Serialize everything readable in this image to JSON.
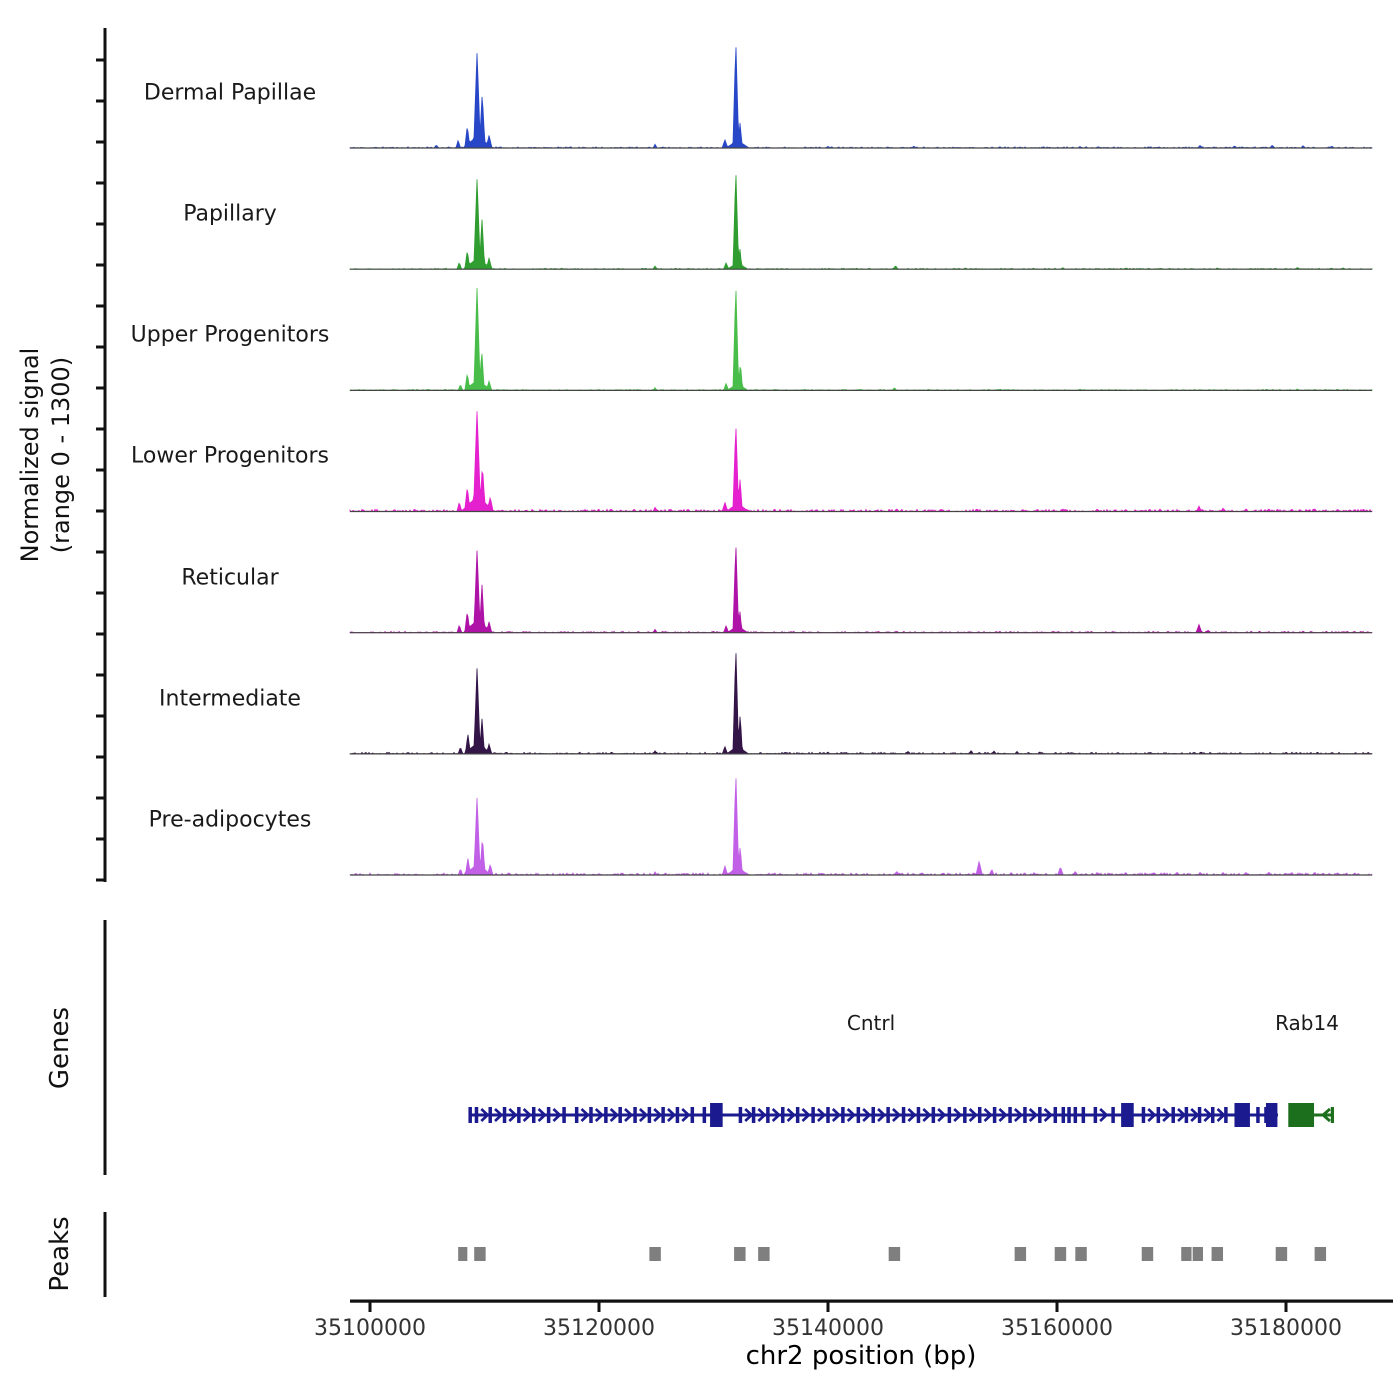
{
  "figure": {
    "y_axis_label_line1": "Normalized signal",
    "y_axis_label_line2": "(range 0 - 1300)",
    "genes_axis_label": "Genes",
    "peaks_axis_label": "Peaks",
    "x_axis_label": "chr2 position (bp)"
  },
  "chart_data": {
    "type": "area",
    "description": "Genome browser view of normalized ATAC/ChIP signal tracks over chr2:35098000-35188000 with gene models and called peaks",
    "x_domain": [
      35098300,
      35187600
    ],
    "x_ticks": [
      35100000,
      35120000,
      35140000,
      35160000,
      35180000
    ],
    "x_tick_labels": [
      "35100000",
      "35120000",
      "35140000",
      "35160000",
      "35180000"
    ],
    "y_range_per_track": [
      0,
      1300
    ],
    "axis_color": "#111111",
    "baseline_color": "#444444",
    "peak_color": "#7f7f7f",
    "tracks": [
      {
        "name": "Dermal Papillae",
        "color": "#2847c8",
        "noise": 14,
        "noise_seed": 11,
        "peaks": [
          [
            35105800,
            35,
            400
          ],
          [
            35107700,
            90,
            400
          ],
          [
            35108500,
            260,
            450
          ],
          [
            35109350,
            1120,
            600
          ],
          [
            35109800,
            640,
            500
          ],
          [
            35110400,
            150,
            500
          ],
          [
            35109400,
            140,
            2600
          ],
          [
            35124900,
            45,
            350
          ],
          [
            35131000,
            95,
            500
          ],
          [
            35131950,
            1240,
            520
          ],
          [
            35132320,
            300,
            380
          ],
          [
            35132100,
            90,
            2000
          ],
          [
            35140000,
            18,
            400
          ],
          [
            35147500,
            22,
            400
          ],
          [
            35155000,
            15,
            400
          ],
          [
            35162000,
            18,
            400
          ],
          [
            35168000,
            15,
            400
          ],
          [
            35172500,
            30,
            450
          ],
          [
            35175500,
            25,
            400
          ],
          [
            35178800,
            32,
            450
          ],
          [
            35181500,
            28,
            400
          ],
          [
            35184000,
            22,
            400
          ]
        ]
      },
      {
        "name": "Papillary",
        "color": "#2f9d2f",
        "noise": 11,
        "noise_seed": 22,
        "peaks": [
          [
            35107800,
            80,
            400
          ],
          [
            35108500,
            220,
            450
          ],
          [
            35109350,
            1060,
            580
          ],
          [
            35109780,
            580,
            480
          ],
          [
            35110400,
            130,
            480
          ],
          [
            35109400,
            130,
            2500
          ],
          [
            35124900,
            38,
            350
          ],
          [
            35131100,
            75,
            450
          ],
          [
            35131950,
            1160,
            500
          ],
          [
            35132300,
            255,
            360
          ],
          [
            35132100,
            75,
            1800
          ],
          [
            35145900,
            42,
            400
          ],
          [
            35152000,
            15,
            350
          ],
          [
            35160500,
            18,
            380
          ],
          [
            35166000,
            14,
            350
          ],
          [
            35174000,
            15,
            350
          ],
          [
            35181000,
            22,
            380
          ],
          [
            35185000,
            15,
            350
          ]
        ]
      },
      {
        "name": "Upper Progenitors",
        "color": "#49bd49",
        "noise": 11,
        "noise_seed": 33,
        "peaks": [
          [
            35107900,
            70,
            380
          ],
          [
            35108500,
            200,
            430
          ],
          [
            35109350,
            1210,
            560
          ],
          [
            35109760,
            470,
            440
          ],
          [
            35110400,
            110,
            450
          ],
          [
            35109400,
            120,
            2400
          ],
          [
            35124900,
            32,
            330
          ],
          [
            35131100,
            80,
            440
          ],
          [
            35131950,
            1230,
            500
          ],
          [
            35132350,
            330,
            380
          ],
          [
            35132100,
            80,
            1800
          ],
          [
            35145800,
            32,
            380
          ],
          [
            35155000,
            12,
            350
          ],
          [
            35162000,
            14,
            350
          ],
          [
            35170000,
            12,
            350
          ],
          [
            35181000,
            18,
            360
          ],
          [
            35184500,
            14,
            350
          ]
        ]
      },
      {
        "name": "Lower Progenitors",
        "color": "#e520ce",
        "noise": 26,
        "noise_seed": 44,
        "peaks": [
          [
            35107800,
            110,
            420
          ],
          [
            35108500,
            290,
            470
          ],
          [
            35109350,
            1180,
            640
          ],
          [
            35109820,
            540,
            500
          ],
          [
            35110500,
            170,
            520
          ],
          [
            35109400,
            180,
            2900
          ],
          [
            35124900,
            52,
            360
          ],
          [
            35131000,
            105,
            500
          ],
          [
            35131950,
            1020,
            520
          ],
          [
            35132320,
            380,
            400
          ],
          [
            35132100,
            95,
            2000
          ],
          [
            35139000,
            25,
            380
          ],
          [
            35146000,
            32,
            400
          ],
          [
            35150000,
            25,
            380
          ],
          [
            35153000,
            28,
            380
          ],
          [
            35157000,
            25,
            380
          ],
          [
            35160500,
            32,
            400
          ],
          [
            35163500,
            28,
            380
          ],
          [
            35166000,
            25,
            380
          ],
          [
            35169000,
            28,
            380
          ],
          [
            35172400,
            62,
            450
          ],
          [
            35174500,
            38,
            400
          ],
          [
            35176500,
            30,
            380
          ],
          [
            35178500,
            32,
            380
          ],
          [
            35180500,
            30,
            380
          ],
          [
            35182500,
            35,
            380
          ],
          [
            35184500,
            28,
            380
          ],
          [
            35186000,
            25,
            380
          ]
        ]
      },
      {
        "name": "Reticular",
        "color": "#ae12a6",
        "noise": 15,
        "noise_seed": 55,
        "peaks": [
          [
            35107800,
            90,
            400
          ],
          [
            35108500,
            250,
            450
          ],
          [
            35109350,
            970,
            560
          ],
          [
            35109780,
            560,
            460
          ],
          [
            35110400,
            130,
            460
          ],
          [
            35109400,
            150,
            2500
          ],
          [
            35124900,
            40,
            340
          ],
          [
            35131100,
            80,
            440
          ],
          [
            35131950,
            1050,
            500
          ],
          [
            35132300,
            265,
            370
          ],
          [
            35132100,
            80,
            1800
          ],
          [
            35146000,
            18,
            360
          ],
          [
            35155000,
            15,
            350
          ],
          [
            35163000,
            15,
            350
          ],
          [
            35172400,
            95,
            500
          ],
          [
            35173200,
            30,
            380
          ],
          [
            35181500,
            18,
            360
          ]
        ]
      },
      {
        "name": "Intermediate",
        "color": "#341548",
        "noise": 18,
        "noise_seed": 66,
        "peaks": [
          [
            35107900,
            80,
            390
          ],
          [
            35108550,
            230,
            440
          ],
          [
            35109350,
            1010,
            560
          ],
          [
            35109780,
            410,
            440
          ],
          [
            35110400,
            115,
            450
          ],
          [
            35109400,
            130,
            2400
          ],
          [
            35124900,
            38,
            340
          ],
          [
            35131000,
            85,
            450
          ],
          [
            35131950,
            1240,
            510
          ],
          [
            35132330,
            470,
            390
          ],
          [
            35132100,
            90,
            1900
          ],
          [
            35140000,
            20,
            360
          ],
          [
            35147000,
            30,
            380
          ],
          [
            35152500,
            38,
            400
          ],
          [
            35154500,
            32,
            380
          ],
          [
            35156500,
            28,
            380
          ],
          [
            35158500,
            22,
            360
          ],
          [
            35163000,
            18,
            360
          ],
          [
            35168000,
            16,
            350
          ],
          [
            35172000,
            20,
            360
          ],
          [
            35176000,
            16,
            350
          ],
          [
            35180000,
            18,
            350
          ],
          [
            35184000,
            16,
            350
          ]
        ]
      },
      {
        "name": "Pre-adipocytes",
        "color": "#c160e6",
        "noise": 24,
        "noise_seed": 77,
        "peaks": [
          [
            35107900,
            75,
            390
          ],
          [
            35108550,
            200,
            430
          ],
          [
            35109350,
            910,
            560
          ],
          [
            35109820,
            450,
            450
          ],
          [
            35110500,
            125,
            460
          ],
          [
            35109400,
            130,
            2400
          ],
          [
            35124900,
            38,
            340
          ],
          [
            35131000,
            105,
            460
          ],
          [
            35131950,
            1190,
            520
          ],
          [
            35132330,
            340,
            390
          ],
          [
            35132100,
            95,
            1900
          ],
          [
            35139500,
            22,
            360
          ],
          [
            35146000,
            45,
            400
          ],
          [
            35150000,
            25,
            370
          ],
          [
            35153200,
            160,
            550
          ],
          [
            35154300,
            65,
            420
          ],
          [
            35156000,
            30,
            380
          ],
          [
            35158000,
            28,
            370
          ],
          [
            35160300,
            95,
            480
          ],
          [
            35161600,
            45,
            390
          ],
          [
            35163500,
            30,
            370
          ],
          [
            35166000,
            32,
            370
          ],
          [
            35168500,
            30,
            370
          ],
          [
            35170500,
            35,
            380
          ],
          [
            35172500,
            32,
            370
          ],
          [
            35174500,
            30,
            370
          ],
          [
            35176500,
            32,
            370
          ],
          [
            35178500,
            35,
            380
          ],
          [
            35180500,
            32,
            370
          ],
          [
            35182500,
            35,
            370
          ],
          [
            35184500,
            30,
            370
          ],
          [
            35186000,
            28,
            360
          ]
        ]
      }
    ],
    "genes": [
      {
        "name": "Cntrl",
        "color": "#1b1b8f",
        "strand": "+",
        "start": 35108700,
        "end": 35179300,
        "exons": [
          35108750,
          35109300,
          35110500,
          35111750,
          35113000,
          35114300,
          35115600,
          35116950,
          35118050,
          35119300,
          35120600,
          35121850,
          35123150,
          35124400,
          35125600,
          35126850,
          35128150,
          35129200,
          35132350,
          35133500,
          35134750,
          35136050,
          35137350,
          35138700,
          35140000,
          35141300,
          35142650,
          35143950,
          35145250,
          35146600,
          35147900,
          35149200,
          35150600,
          35151950,
          35153250,
          35154550,
          35155900,
          35157200,
          35158500,
          35159850,
          35160550,
          35161050,
          35161600,
          35162300,
          35163350,
          35164900,
          35167550,
          35168850,
          35170150,
          35171300,
          35172450,
          35173600,
          35174750,
          35177550,
          35178250,
          35178950
        ],
        "cds_boxes": [
          [
            35129700,
            35130800
          ],
          [
            35165600,
            35166700
          ],
          [
            35175500,
            35176850
          ],
          [
            35178250,
            35179250
          ]
        ]
      },
      {
        "name": "Rab14",
        "color": "#1c6f1c",
        "strand": "-",
        "start": 35180200,
        "end": 35184100,
        "box": [
          35180200,
          35182450
        ],
        "exons": [
          35184050
        ]
      }
    ],
    "peak_calls": [
      [
        35107700,
        35108500
      ],
      [
        35109100,
        35110100
      ],
      [
        35124400,
        35125400
      ],
      [
        35131800,
        35132800
      ],
      [
        35133900,
        35134900
      ],
      [
        35145300,
        35146300
      ],
      [
        35156300,
        35157300
      ],
      [
        35159800,
        35160800
      ],
      [
        35161600,
        35162600
      ],
      [
        35167400,
        35168400
      ],
      [
        35170850,
        35171750
      ],
      [
        35171850,
        35172750
      ],
      [
        35173500,
        35174500
      ],
      [
        35179100,
        35180100
      ],
      [
        35182500,
        35183500
      ]
    ]
  }
}
